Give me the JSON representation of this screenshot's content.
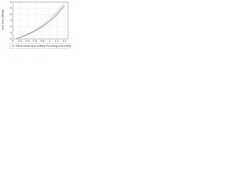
{
  "chart_data": {
    "type": "line",
    "y_label": "Iron loss (W/kg)",
    "x": [
      0.1,
      0.2,
      0.4,
      0.6,
      0.8,
      1.0,
      1.2,
      1.4
    ],
    "series": [
      {
        "name": "Electrochemical cutting",
        "color": "#e8413c",
        "dashed": false,
        "values": [
          0.1,
          0.25,
          0.7,
          1.3,
          2.0,
          2.9,
          4.0,
          5.4
        ]
      },
      {
        "name": "Punching and cutting",
        "color": "#2bb5d6",
        "dashed": true,
        "values": [
          0.1,
          0.3,
          0.8,
          1.4,
          2.2,
          3.2,
          4.4,
          5.8
        ]
      }
    ],
    "xlim": [
      0,
      1.5
    ],
    "xticks": [
      0,
      0.2,
      0.4,
      0.6,
      0.8,
      1.0,
      1.2,
      1.4
    ],
    "ylim": [
      0,
      6
    ],
    "yticks": [
      0,
      1,
      2,
      3,
      4,
      5,
      6
    ],
    "grid": true,
    "legend": "bottom"
  }
}
